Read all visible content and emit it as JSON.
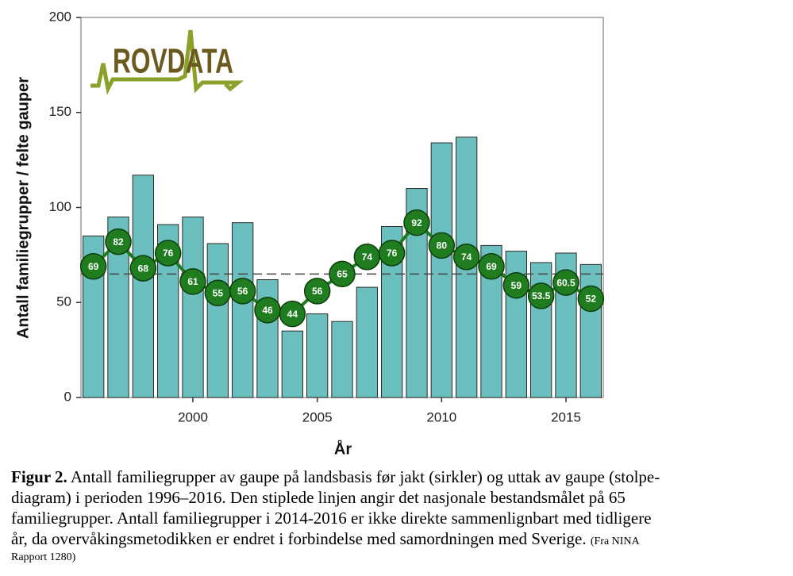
{
  "chart_data": {
    "type": "bar_line",
    "logo": "ROVDATA",
    "ylabel": "Antall familiegrupper / felte gauper",
    "xlabel": "År",
    "x": [
      1996,
      1997,
      1998,
      1999,
      2000,
      2001,
      2002,
      2003,
      2004,
      2005,
      2006,
      2007,
      2008,
      2009,
      2010,
      2011,
      2012,
      2013,
      2014,
      2015,
      2016
    ],
    "xlim": [
      1995.5,
      2016.5
    ],
    "xticks": [
      2000,
      2005,
      2010,
      2015
    ],
    "ylim": [
      0,
      200
    ],
    "yticks": [
      0,
      50,
      100,
      150,
      200
    ],
    "target_line": 65,
    "series": [
      {
        "type": "bar",
        "color": "#6cbfbf",
        "values": [
          85,
          95,
          117,
          91,
          95,
          81,
          92,
          62,
          35,
          44,
          40,
          58,
          90,
          110,
          134,
          137,
          80,
          77,
          71,
          76,
          70
        ]
      },
      {
        "type": "line",
        "color": "#1f7d1f",
        "values": [
          69,
          82,
          68,
          76,
          61,
          55,
          56,
          46,
          44,
          56,
          65,
          74,
          76,
          92,
          80,
          74,
          69,
          59,
          53.5,
          60.5,
          52
        ]
      }
    ]
  },
  "caption": {
    "label": "Figur 2.",
    "lines": [
      " Antall familiegrupper av gaupe på landsbasis før jakt (sirkler) og uttak av gaupe (stolpe-",
      "diagram) i perioden 1996–2016. Den stiplede linjen angir det nasjonale bestandsmålet på 65",
      "familiegrupper. Antall familiegrupper i 2014-2016 er ikke direkte sammenlignbart med tidligere",
      "år, da overvåkingsmetodikken er endret i forbindelse med samordningen med Sverige. "
    ],
    "source": [
      "(Fra NINA",
      "Rapport 1280)"
    ]
  }
}
